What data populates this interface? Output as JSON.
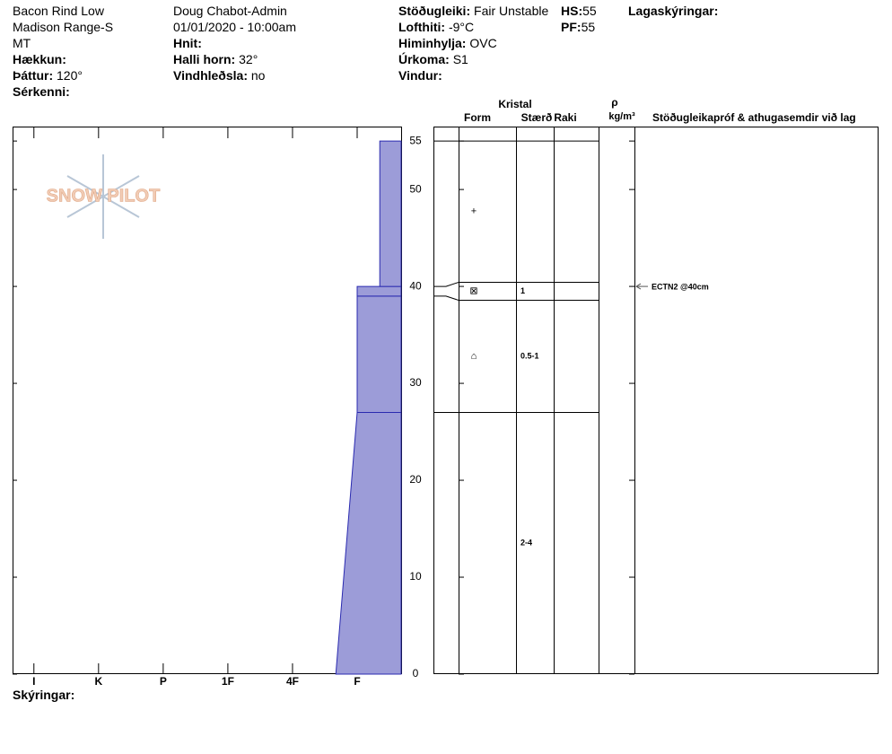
{
  "header": {
    "location": "Bacon Rind Low",
    "range": "Madison Range-S",
    "state": "MT",
    "elevation_label": "Hækkun:",
    "aspect_label": "Þáttur:",
    "aspect": "120°",
    "features_label": "Sérkenni:",
    "observer": "Doug Chabot-Admin",
    "datetime": "01/01/2020 - 10:00am",
    "coords_label": "Hnit:",
    "slope_label": "Halli horn:",
    "slope": "32°",
    "wind_loading_label": "Vindhleðsla:",
    "wind_loading": "no",
    "stability_label": "Stöðugleiki:",
    "stability": "Fair Unstable",
    "air_temp_label": "Lofthiti:",
    "air_temp": "-9°C",
    "sky_label": "Himinhylja:",
    "sky": "OVC",
    "precip_label": "Úrkoma:",
    "precip": "S1",
    "wind_label": "Vindur:",
    "hs_label": "HS:",
    "hs": 55,
    "pf_label": "PF:",
    "pf": 55,
    "layer_notes_label": "Lagaskýringar:"
  },
  "logo": "SNOW PILOT",
  "profile": {
    "ylim": [
      0,
      56.4
    ],
    "yticks": [
      0,
      10,
      20,
      30,
      40,
      50,
      55
    ],
    "xlim": [
      6.33,
      0.32
    ],
    "hardness_ticks": [
      {
        "value": 6,
        "label": "I"
      },
      {
        "value": 5,
        "label": "K"
      },
      {
        "value": 4,
        "label": "P"
      },
      {
        "value": 3,
        "label": "1F"
      },
      {
        "value": 2,
        "label": "4F"
      },
      {
        "value": 1,
        "label": "F"
      }
    ],
    "layers": [
      {
        "bottom": 0,
        "top": 27,
        "hardness_bottom": 1.33,
        "hardness_top": 1,
        "size": "2-4"
      },
      {
        "bottom": 27,
        "top": 39,
        "hardness_bottom": 1,
        "hardness_top": 1,
        "form": "⌂",
        "size": "0.5-1"
      },
      {
        "bottom": 39,
        "top": 40,
        "hardness_bottom": 1,
        "hardness_top": 1,
        "form": "⊠",
        "size": "1"
      },
      {
        "bottom": 40,
        "top": 55,
        "hardness_bottom": 0.65,
        "hardness_top": 0.65,
        "form": "+"
      }
    ]
  },
  "table": {
    "crystal": "Kristal",
    "form": "Form",
    "size": "Stærð",
    "moisture": "Raki",
    "density_symbol": "ρ",
    "density_unit": "kg/m³",
    "comments": "Stöðugleikapróf & athugasemdir við lag"
  },
  "tests": [
    {
      "label": "ECTN2 @40cm",
      "height": 40
    }
  ],
  "footer": "Skýringar:"
}
